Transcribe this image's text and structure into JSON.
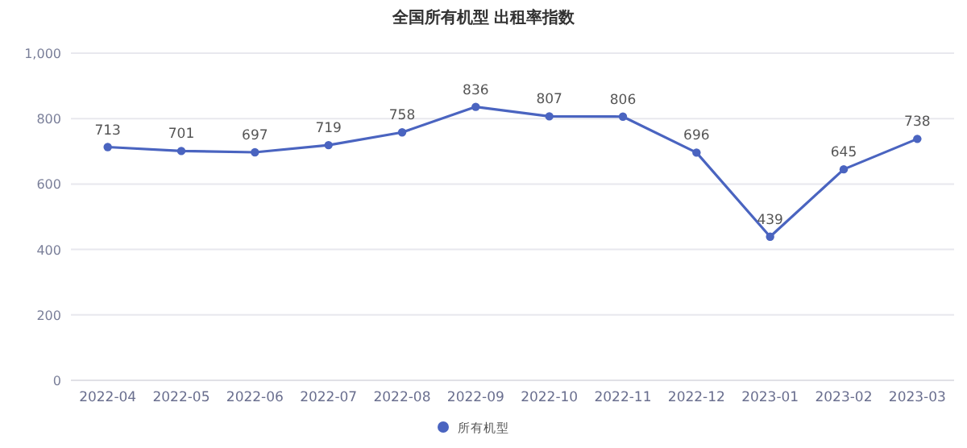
{
  "chart_data": {
    "type": "line",
    "title": "全国所有机型 出租率指数",
    "categories": [
      "2022-04",
      "2022-05",
      "2022-06",
      "2022-07",
      "2022-08",
      "2022-09",
      "2022-10",
      "2022-11",
      "2022-12",
      "2023-01",
      "2023-02",
      "2023-03"
    ],
    "series": [
      {
        "name": "所有机型",
        "color": "#4a64c0",
        "values": [
          713,
          701,
          697,
          719,
          758,
          836,
          807,
          806,
          696,
          439,
          645,
          738
        ]
      }
    ],
    "ylim": [
      0,
      1000
    ],
    "yticks": [
      0,
      200,
      400,
      600,
      800,
      {
        "value": 1000,
        "label": "1,000"
      }
    ],
    "grid": "y",
    "legend": "bottom",
    "marker": "circle",
    "line_style": "solid",
    "data_labels": true
  }
}
